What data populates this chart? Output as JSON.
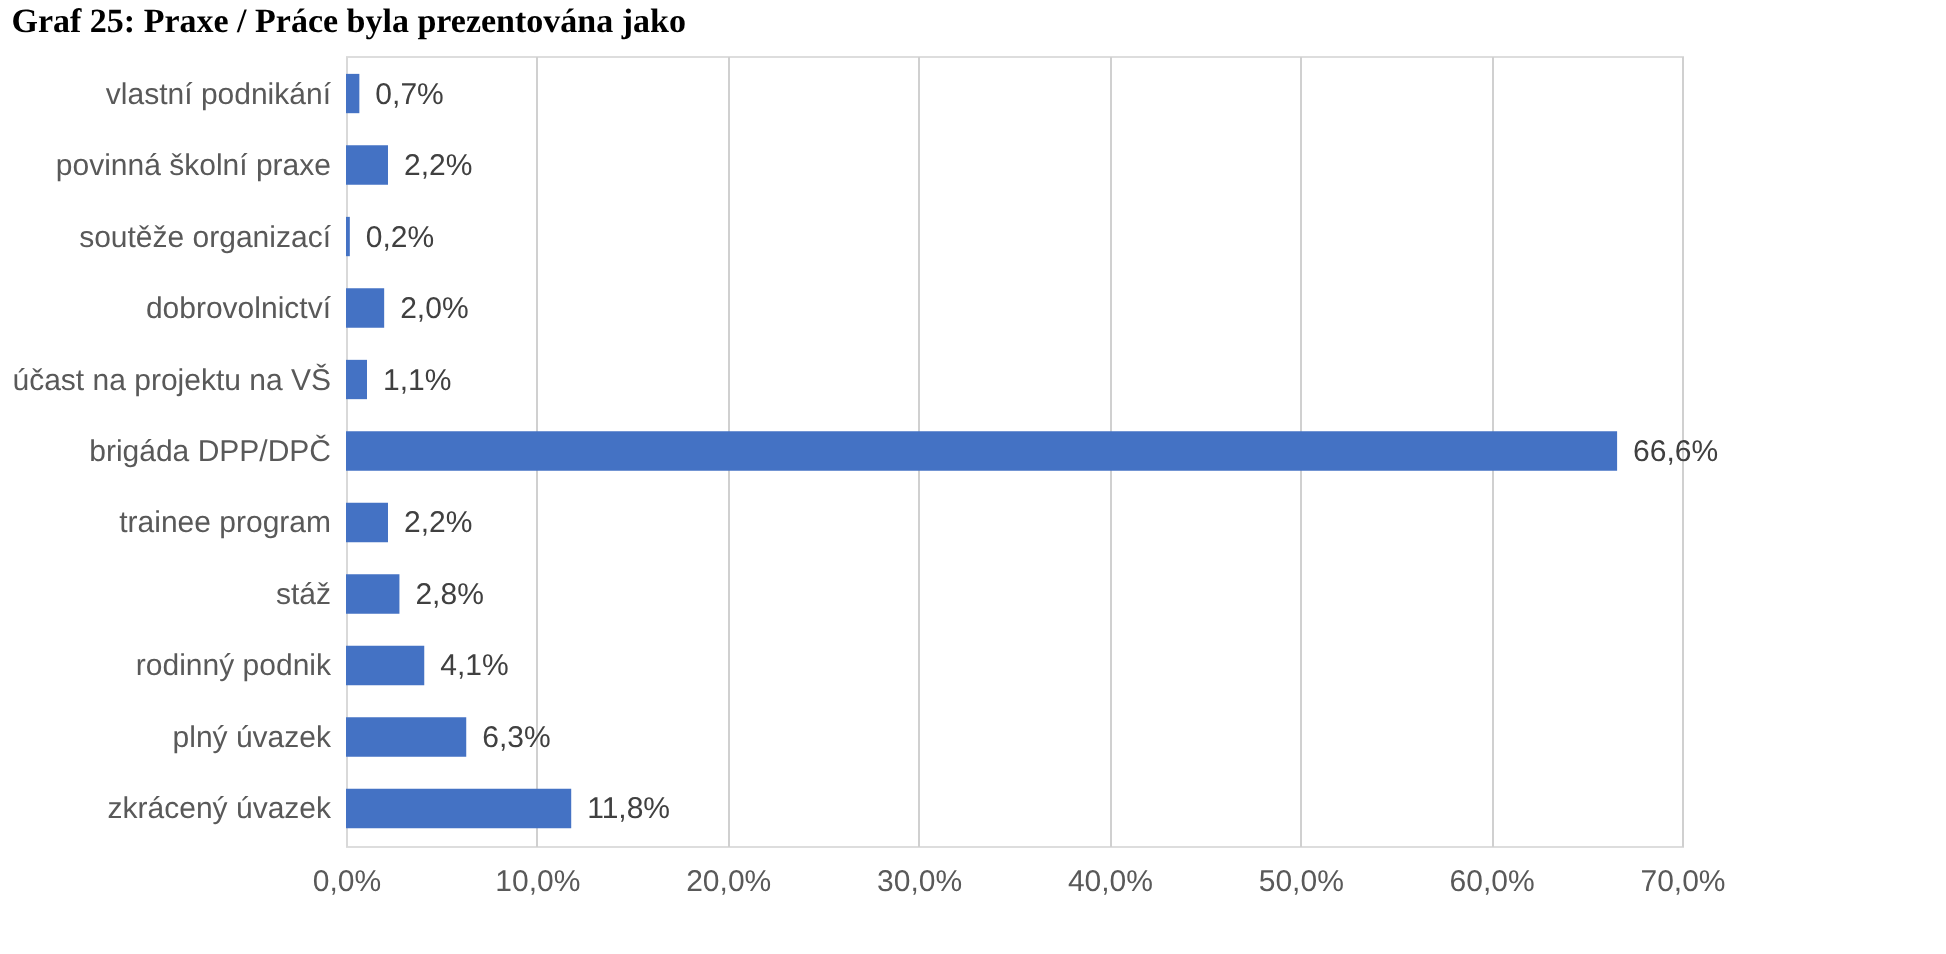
{
  "chart_data": {
    "type": "bar",
    "orientation": "horizontal",
    "title": "Graf 25: Praxe / Práce byla prezentována jako",
    "categories": [
      "vlastní podnikání",
      "povinná školní praxe",
      "soutěže organizací",
      "dobrovolnictví",
      "účast na projektu na VŠ",
      "brigáda DPP/DPČ",
      "trainee program",
      "stáž",
      "rodinný podnik",
      "plný úvazek",
      "zkrácený úvazek"
    ],
    "values": [
      0.7,
      2.2,
      0.2,
      2.0,
      1.1,
      66.6,
      2.2,
      2.8,
      4.1,
      6.3,
      11.8
    ],
    "value_labels": [
      "0,7%",
      "2,2%",
      "0,2%",
      "2,0%",
      "1,1%",
      "66,6%",
      "2,2%",
      "2,8%",
      "4,1%",
      "6,3%",
      "11,8%"
    ],
    "color": "#4472c4",
    "xlim": [
      0,
      70
    ],
    "xticks": [
      {
        "value": 0,
        "label": "0,0%"
      },
      {
        "value": 10,
        "label": "10,0%"
      },
      {
        "value": 20,
        "label": "20,0%"
      },
      {
        "value": 30,
        "label": "30,0%"
      },
      {
        "value": 40,
        "label": "40,0%"
      },
      {
        "value": 50,
        "label": "50,0%"
      },
      {
        "value": 60,
        "label": "60,0%"
      },
      {
        "value": 70,
        "label": "70,0%"
      }
    ],
    "grid": "x"
  }
}
